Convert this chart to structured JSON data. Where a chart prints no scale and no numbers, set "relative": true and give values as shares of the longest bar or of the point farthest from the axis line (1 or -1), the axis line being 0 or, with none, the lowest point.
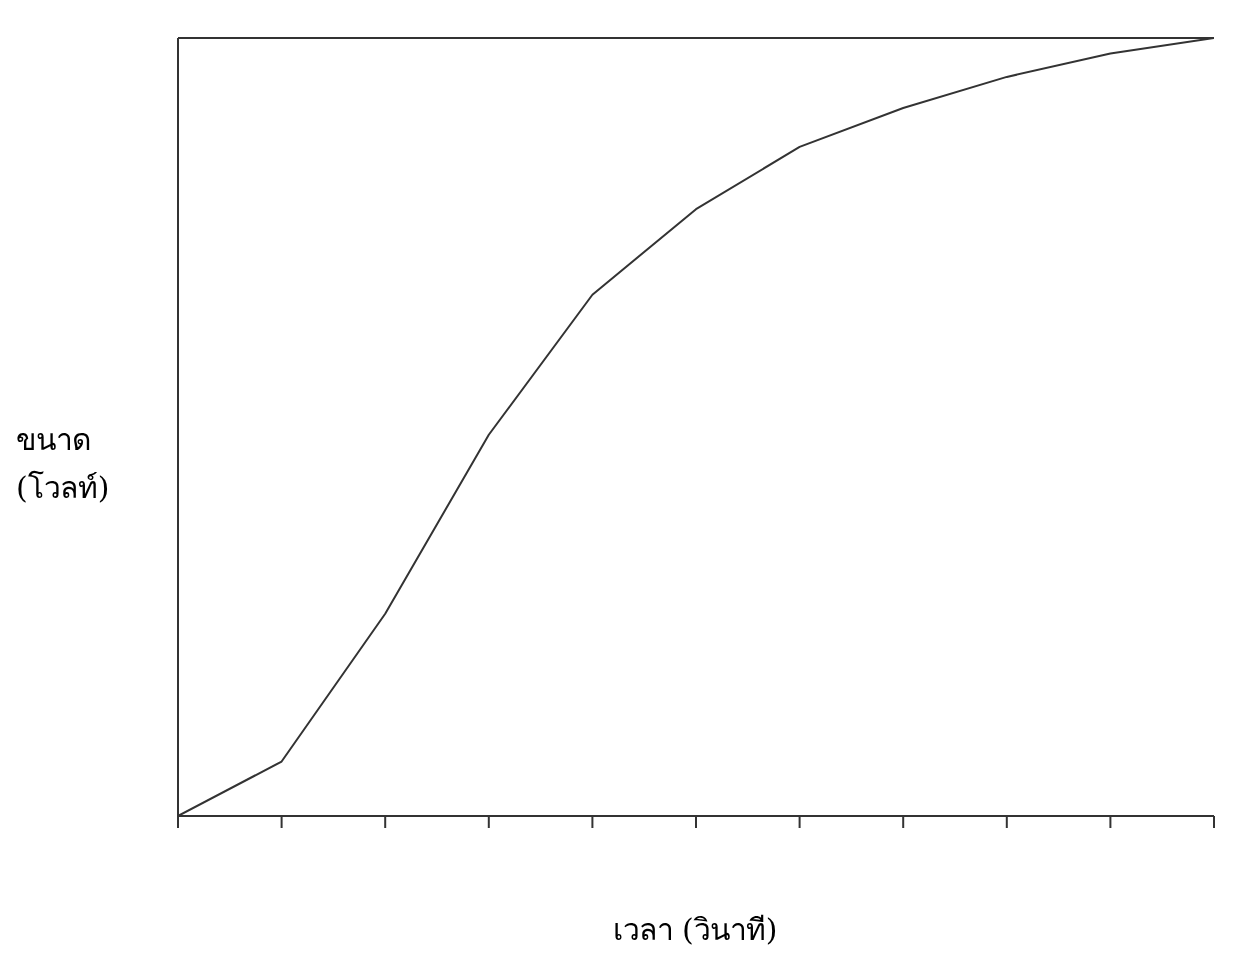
{
  "chart_data": {
    "type": "line",
    "relative": true,
    "xlabel": "เวลา (วินาที)",
    "ylabel": "ขนาด\n(โวลท์)",
    "categories": [
      null,
      null,
      null,
      null,
      null,
      null,
      null,
      null,
      null,
      null,
      null
    ],
    "series": [
      {
        "color": "#333333",
        "values": [
          0,
          0.07,
          0.26,
          0.49,
          0.67,
          0.78,
          0.86,
          0.91,
          0.95,
          0.98,
          1
        ]
      }
    ],
    "grid": false,
    "legend": false,
    "marker": "none",
    "line_style": "solid"
  }
}
